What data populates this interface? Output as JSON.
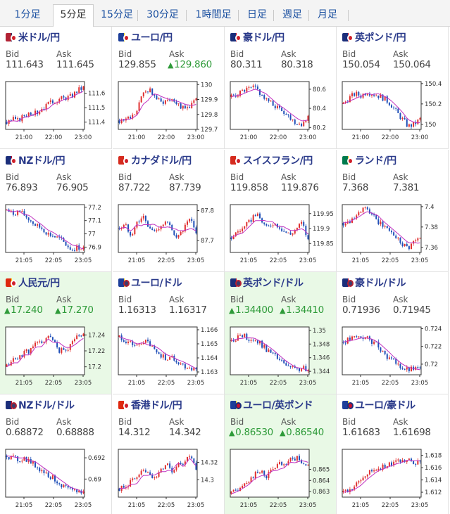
{
  "tabs": [
    "1分足",
    "5分足",
    "15分足",
    "30分足",
    "1時間足",
    "日足",
    "週足",
    "月足"
  ],
  "active_tab": 1,
  "labels": {
    "bid": "Bid",
    "ask": "Ask"
  },
  "colors": {
    "up": "#e03030",
    "down": "#1f4fb8",
    "ma": "#c030c0",
    "rise": "#2f9b3a",
    "pair": "#2a3a8a"
  },
  "pairs": [
    {
      "name": "米ドル/円",
      "flags": [
        "us",
        "jp"
      ],
      "bid": "111.643",
      "ask": "111.645",
      "yticks": [
        "111.6",
        "111.5",
        "111.4"
      ],
      "xticks": [
        "21:00",
        "22:00",
        "23:00"
      ]
    },
    {
      "name": "ユーロ/円",
      "flags": [
        "eu",
        "jp"
      ],
      "bid": "129.855",
      "ask": "129.860",
      "ask_up": true,
      "yticks": [
        "130",
        "129.9",
        "129.8",
        "129.7"
      ],
      "xticks": [
        "21:00",
        "22:00",
        "23:00"
      ]
    },
    {
      "name": "豪ドル/円",
      "flags": [
        "au",
        "jp"
      ],
      "bid": "80.311",
      "ask": "80.318",
      "yticks": [
        "80.6",
        "80.4",
        "80.2"
      ],
      "xticks": [
        "21:00",
        "22:00",
        "23:00"
      ]
    },
    {
      "name": "英ポンド/円",
      "flags": [
        "gb",
        "jp"
      ],
      "bid": "150.054",
      "ask": "150.064",
      "yticks": [
        "150.4",
        "150.2",
        "150"
      ],
      "xticks": [
        "21:00",
        "22:00",
        "23:00"
      ]
    },
    {
      "name": "NZドル/円",
      "flags": [
        "nz",
        "jp"
      ],
      "bid": "76.893",
      "ask": "76.905",
      "yticks": [
        "77.2",
        "77.1",
        "77",
        "76.9"
      ],
      "xticks": [
        "21:05",
        "22:05",
        "23:05"
      ]
    },
    {
      "name": "カナダドル/円",
      "flags": [
        "ca",
        "jp"
      ],
      "bid": "87.722",
      "ask": "87.739",
      "yticks": [
        "87.8",
        "87.7"
      ],
      "xticks": [
        "21:05",
        "22:05",
        "23:05"
      ]
    },
    {
      "name": "スイスフラン/円",
      "flags": [
        "ch",
        "jp"
      ],
      "bid": "119.858",
      "ask": "119.876",
      "yticks": [
        "119.95",
        "119.9",
        "119.85"
      ],
      "xticks": [
        "21:05",
        "22:05",
        "23:05"
      ]
    },
    {
      "name": "ランド/円",
      "flags": [
        "za",
        "jp"
      ],
      "bid": "7.368",
      "ask": "7.381",
      "yticks": [
        "7.4",
        "7.38",
        "7.36"
      ],
      "xticks": [
        "21:05",
        "22:05",
        "23:05"
      ]
    },
    {
      "name": "人民元/円",
      "flags": [
        "cn",
        "jp"
      ],
      "bid": "17.240",
      "ask": "17.270",
      "bid_up": true,
      "ask_up": true,
      "highlight": true,
      "yticks": [
        "17.24",
        "17.22",
        "17.2"
      ],
      "xticks": [
        "21:05",
        "22:05",
        "23:05"
      ]
    },
    {
      "name": "ユーロ/ドル",
      "flags": [
        "eu",
        "us"
      ],
      "bid": "1.16313",
      "ask": "1.16317",
      "yticks": [
        "1.166",
        "1.165",
        "1.164",
        "1.163"
      ],
      "xticks": [
        "21:05",
        "22:05",
        "23:05"
      ]
    },
    {
      "name": "英ポンド/ドル",
      "flags": [
        "gb",
        "us"
      ],
      "bid": "1.34400",
      "ask": "1.34410",
      "bid_up": true,
      "ask_up": true,
      "highlight": true,
      "yticks": [
        "1.35",
        "1.348",
        "1.346",
        "1.344"
      ],
      "xticks": [
        "21:05",
        "22:05",
        "23:05"
      ]
    },
    {
      "name": "豪ドル/ドル",
      "flags": [
        "au",
        "us"
      ],
      "bid": "0.71936",
      "ask": "0.71945",
      "yticks": [
        "0.724",
        "0.722",
        "0.72"
      ],
      "xticks": [
        "21:05",
        "22:05",
        "23:05"
      ]
    },
    {
      "name": "NZドル/ドル",
      "flags": [
        "nz",
        "us"
      ],
      "bid": "0.68872",
      "ask": "0.68888",
      "yticks": [
        "0.692",
        "0.69"
      ],
      "xticks": [
        "21:05",
        "22:05",
        "23:05"
      ]
    },
    {
      "name": "香港ドル/円",
      "flags": [
        "hk",
        "jp"
      ],
      "bid": "14.312",
      "ask": "14.342",
      "yticks": [
        "14.32",
        "14.3"
      ],
      "xticks": [
        "21:05",
        "22:05",
        "23:05"
      ]
    },
    {
      "name": "ユーロ/英ポンド",
      "flags": [
        "eu",
        "gb"
      ],
      "bid": "0.86530",
      "ask": "0.86540",
      "bid_up": true,
      "ask_up": true,
      "highlight": true,
      "yticks": [
        "0.865",
        "0.864",
        "0.863"
      ],
      "xticks": [
        "21:05",
        "22:05",
        "23:05"
      ]
    },
    {
      "name": "ユーロ/豪ドル",
      "flags": [
        "eu",
        "au"
      ],
      "bid": "1.61683",
      "ask": "1.61698",
      "yticks": [
        "1.618",
        "1.616",
        "1.614",
        "1.612"
      ],
      "xticks": [
        "21:05",
        "22:05",
        "23:05"
      ]
    }
  ],
  "chart_data": [
    {
      "type": "candlestick",
      "pair": "米ドル/円",
      "trend": [
        111.4,
        111.42,
        111.41,
        111.45,
        111.47,
        111.46,
        111.5,
        111.52,
        111.55,
        111.56,
        111.57,
        111.58,
        111.62,
        111.64
      ],
      "ylim": [
        111.35,
        111.68
      ]
    },
    {
      "type": "candlestick",
      "pair": "ユーロ/円",
      "trend": [
        129.76,
        129.77,
        129.78,
        129.82,
        129.95,
        129.97,
        129.92,
        129.88,
        129.9,
        129.91,
        129.87,
        129.83,
        129.86,
        129.9
      ],
      "ylim": [
        129.7,
        130.02
      ]
    },
    {
      "type": "candlestick",
      "pair": "豪ドル/円",
      "trend": [
        80.52,
        80.55,
        80.58,
        80.6,
        80.62,
        80.55,
        80.48,
        80.44,
        80.4,
        80.36,
        80.3,
        80.25,
        80.24,
        80.31
      ],
      "ylim": [
        80.18,
        80.68
      ]
    },
    {
      "type": "candlestick",
      "pair": "英ポンド/円",
      "trend": [
        150.2,
        150.26,
        150.3,
        150.28,
        150.32,
        150.3,
        150.28,
        150.25,
        150.2,
        150.12,
        150.05,
        149.98,
        150.0,
        150.05
      ],
      "ylim": [
        149.95,
        150.42
      ]
    },
    {
      "type": "candlestick",
      "pair": "NZドル/円",
      "trend": [
        77.18,
        77.15,
        77.17,
        77.14,
        77.1,
        77.06,
        77.04,
        77.0,
        76.98,
        76.96,
        76.92,
        76.88,
        76.9,
        76.89
      ],
      "ylim": [
        76.86,
        77.22
      ]
    },
    {
      "type": "candlestick",
      "pair": "カナダドル/円",
      "trend": [
        87.74,
        87.75,
        87.72,
        87.76,
        87.78,
        87.74,
        87.73,
        87.75,
        87.76,
        87.73,
        87.71,
        87.74,
        87.77,
        87.72
      ],
      "ylim": [
        87.66,
        87.82
      ]
    },
    {
      "type": "candlestick",
      "pair": "スイスフラン/円",
      "trend": [
        119.87,
        119.89,
        119.9,
        119.92,
        119.95,
        119.93,
        119.9,
        119.92,
        119.91,
        119.89,
        119.88,
        119.9,
        119.92,
        119.86
      ],
      "ylim": [
        119.82,
        119.98
      ]
    },
    {
      "type": "candlestick",
      "pair": "ランド/円",
      "trend": [
        7.384,
        7.386,
        7.392,
        7.396,
        7.398,
        7.39,
        7.384,
        7.38,
        7.376,
        7.37,
        7.364,
        7.36,
        7.366,
        7.368
      ],
      "ylim": [
        7.355,
        7.402
      ]
    },
    {
      "type": "candlestick",
      "pair": "人民元/円",
      "trend": [
        17.2,
        17.21,
        17.21,
        17.22,
        17.22,
        17.23,
        17.23,
        17.24,
        17.23,
        17.22,
        17.22,
        17.23,
        17.24,
        17.24
      ],
      "ylim": [
        17.19,
        17.25
      ]
    },
    {
      "type": "candlestick",
      "pair": "ユーロ/ドル",
      "trend": [
        1.1655,
        1.1652,
        1.165,
        1.1648,
        1.1652,
        1.165,
        1.1645,
        1.1642,
        1.164,
        1.164,
        1.1637,
        1.1634,
        1.1633,
        1.1631
      ],
      "ylim": [
        1.1628,
        1.1662
      ]
    },
    {
      "type": "candlestick",
      "pair": "英ポンド/ドル",
      "trend": [
        1.3485,
        1.349,
        1.3492,
        1.3488,
        1.3485,
        1.348,
        1.3472,
        1.3465,
        1.3458,
        1.345,
        1.3445,
        1.3442,
        1.3445,
        1.344
      ],
      "ylim": [
        1.3435,
        1.3505
      ]
    },
    {
      "type": "candlestick",
      "pair": "豪ドル/ドル",
      "trend": [
        0.7225,
        0.7228,
        0.723,
        0.7231,
        0.7229,
        0.7225,
        0.722,
        0.7212,
        0.7205,
        0.72,
        0.7196,
        0.7193,
        0.7195,
        0.7194
      ],
      "ylim": [
        0.7188,
        0.7242
      ]
    },
    {
      "type": "candlestick",
      "pair": "NZドル/ドル",
      "trend": [
        0.6922,
        0.692,
        0.6918,
        0.692,
        0.6916,
        0.6912,
        0.6908,
        0.6904,
        0.69,
        0.6896,
        0.6892,
        0.6888,
        0.6889,
        0.6887
      ],
      "ylim": [
        0.6883,
        0.6928
      ]
    },
    {
      "type": "candlestick",
      "pair": "香港ドル/円",
      "trend": [
        14.29,
        14.29,
        14.3,
        14.3,
        14.31,
        14.31,
        14.3,
        14.31,
        14.32,
        14.31,
        14.32,
        14.32,
        14.33,
        14.31
      ],
      "ylim": [
        14.28,
        14.335
      ]
    },
    {
      "type": "candlestick",
      "pair": "ユーロ/英ポンド",
      "trend": [
        0.8628,
        0.8632,
        0.8638,
        0.864,
        0.8645,
        0.8648,
        0.8644,
        0.865,
        0.8655,
        0.8652,
        0.8658,
        0.866,
        0.8657,
        0.8653
      ],
      "ylim": [
        0.8625,
        0.8668
      ]
    },
    {
      "type": "candlestick",
      "pair": "ユーロ/豪ドル",
      "trend": [
        1.612,
        1.6122,
        1.613,
        1.614,
        1.615,
        1.6155,
        1.616,
        1.6162,
        1.6165,
        1.617,
        1.6172,
        1.6175,
        1.617,
        1.6168
      ],
      "ylim": [
        1.6112,
        1.619
      ]
    }
  ]
}
